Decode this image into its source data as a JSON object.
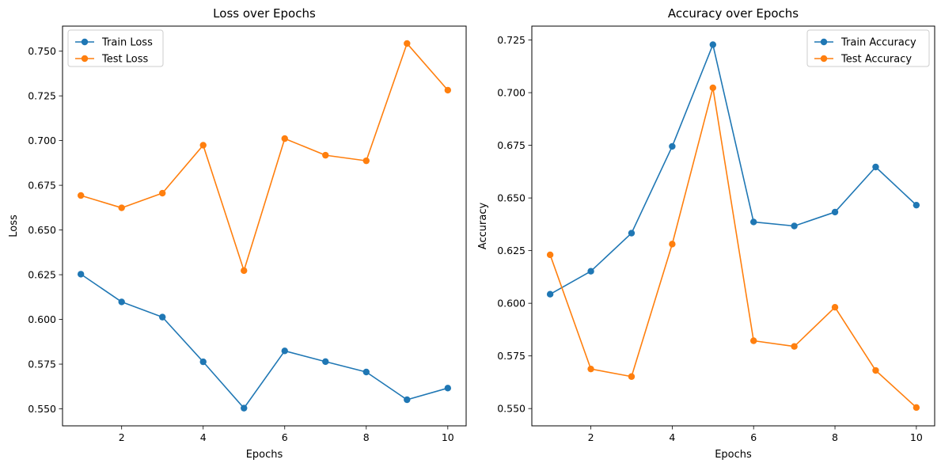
{
  "chart_data": [
    {
      "type": "line",
      "title": "Loss over Epochs",
      "xlabel": "Epochs",
      "ylabel": "Loss",
      "x": [
        1,
        2,
        3,
        4,
        5,
        6,
        7,
        8,
        9,
        10
      ],
      "xlim": [
        0.55,
        10.45
      ],
      "ylim": [
        0.5405,
        0.764
      ],
      "xticks": [
        2,
        4,
        6,
        8,
        10
      ],
      "yticks": [
        0.55,
        0.575,
        0.6,
        0.625,
        0.65,
        0.675,
        0.7,
        0.725,
        0.75
      ],
      "legend_position": "upper-left",
      "grid": false,
      "series": [
        {
          "name": "Train Loss",
          "color": "#1f77b4",
          "values": [
            0.6253,
            0.6098,
            0.6013,
            0.5763,
            0.5504,
            0.5824,
            0.5764,
            0.5706,
            0.5551,
            0.5616
          ]
        },
        {
          "name": "Test Loss",
          "color": "#ff7f0e",
          "values": [
            0.6693,
            0.6624,
            0.6706,
            0.6974,
            0.6273,
            0.7011,
            0.6918,
            0.6887,
            0.7543,
            0.7282
          ]
        }
      ]
    },
    {
      "type": "line",
      "title": "Accuracy over Epochs",
      "xlabel": "Epochs",
      "ylabel": "Accuracy",
      "x": [
        1,
        2,
        3,
        4,
        5,
        6,
        7,
        8,
        9,
        10
      ],
      "xlim": [
        0.55,
        10.45
      ],
      "ylim": [
        0.5418,
        0.7316
      ],
      "xticks": [
        2,
        4,
        6,
        8,
        10
      ],
      "yticks": [
        0.55,
        0.575,
        0.6,
        0.625,
        0.65,
        0.675,
        0.7,
        0.725
      ],
      "legend_position": "upper-right",
      "grid": false,
      "series": [
        {
          "name": "Train Accuracy",
          "color": "#1f77b4",
          "values": [
            0.6043,
            0.6152,
            0.6333,
            0.6745,
            0.7228,
            0.6386,
            0.6367,
            0.6433,
            0.6647,
            0.6466
          ]
        },
        {
          "name": "Test Accuracy",
          "color": "#ff7f0e",
          "values": [
            0.623,
            0.5688,
            0.5652,
            0.6281,
            0.7023,
            0.5822,
            0.5795,
            0.5981,
            0.5681,
            0.5505
          ]
        }
      ]
    }
  ]
}
